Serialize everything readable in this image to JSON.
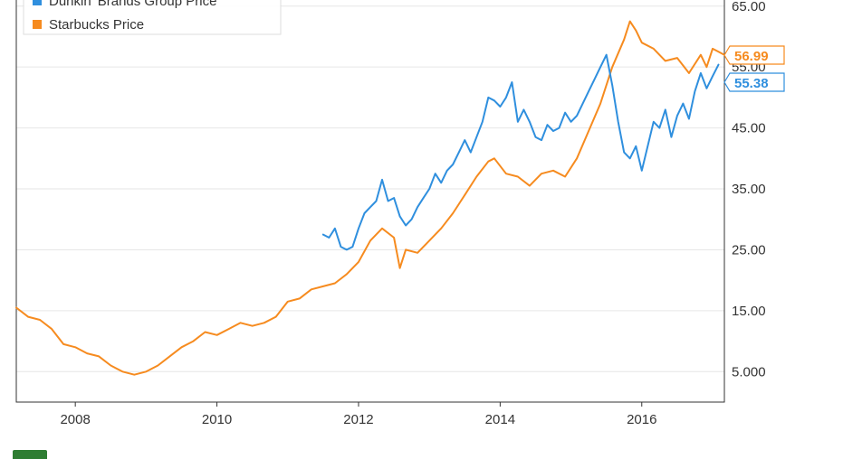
{
  "chart_data": {
    "type": "line",
    "title": "",
    "xlabel": "",
    "ylabel": "",
    "xlim": [
      "2007-03",
      "2017-03"
    ],
    "ylim": [
      0,
      66
    ],
    "y_ticks": [
      "5.000",
      "15.00",
      "25.00",
      "35.00",
      "45.00",
      "55.00",
      "65.00"
    ],
    "y_tick_values": [
      5,
      15,
      25,
      35,
      45,
      55,
      65
    ],
    "x_ticks": [
      "2008",
      "2010",
      "2012",
      "2014",
      "2016"
    ],
    "x_tick_values": [
      "2008-01",
      "2010-01",
      "2012-01",
      "2014-01",
      "2016-01"
    ],
    "y_axis_side": "right",
    "grid": "horizontal",
    "legend_position": "top-left",
    "series": [
      {
        "name": "Dunkin' Brands Group Price",
        "color": "#2f8fde",
        "end_label": "55.38",
        "x": [
          "2011-07",
          "2011-08",
          "2011-09",
          "2011-10",
          "2011-11",
          "2011-12",
          "2012-01",
          "2012-02",
          "2012-03",
          "2012-04",
          "2012-05",
          "2012-06",
          "2012-07",
          "2012-08",
          "2012-09",
          "2012-10",
          "2012-11",
          "2012-12",
          "2013-01",
          "2013-02",
          "2013-03",
          "2013-04",
          "2013-05",
          "2013-06",
          "2013-07",
          "2013-08",
          "2013-09",
          "2013-10",
          "2013-11",
          "2013-12",
          "2014-01",
          "2014-02",
          "2014-03",
          "2014-04",
          "2014-05",
          "2014-06",
          "2014-07",
          "2014-08",
          "2014-09",
          "2014-10",
          "2014-11",
          "2014-12",
          "2015-01",
          "2015-02",
          "2015-03",
          "2015-04",
          "2015-05",
          "2015-06",
          "2015-07",
          "2015-08",
          "2015-09",
          "2015-10",
          "2015-11",
          "2015-12",
          "2016-01",
          "2016-02",
          "2016-03",
          "2016-04",
          "2016-05",
          "2016-06",
          "2016-07",
          "2016-08",
          "2016-09",
          "2016-10",
          "2016-11",
          "2016-12",
          "2017-01",
          "2017-02"
        ],
        "values": [
          27.5,
          27.0,
          28.5,
          25.5,
          25.0,
          25.5,
          28.5,
          31.0,
          32.0,
          33.0,
          36.5,
          33.0,
          33.5,
          30.5,
          29.0,
          30.0,
          32.0,
          33.5,
          35.0,
          37.5,
          36.0,
          38.0,
          39.0,
          41.0,
          43.0,
          41.0,
          43.5,
          46.0,
          50.0,
          49.5,
          48.5,
          50.0,
          52.5,
          46.0,
          48.0,
          46.0,
          43.5,
          43.0,
          45.5,
          44.5,
          45.0,
          47.5,
          46.0,
          47.0,
          49.0,
          51.0,
          53.0,
          55.0,
          57.0,
          52.0,
          46.0,
          41.0,
          40.0,
          42.0,
          38.0,
          42.0,
          46.0,
          45.0,
          48.0,
          43.5,
          47.0,
          49.0,
          46.5,
          51.0,
          54.0,
          51.5,
          53.5,
          55.38
        ]
      },
      {
        "name": "Starbucks Price",
        "color": "#f68b1f",
        "end_label": "56.99",
        "x": [
          "2007-03",
          "2007-05",
          "2007-07",
          "2007-09",
          "2007-11",
          "2008-01",
          "2008-03",
          "2008-05",
          "2008-07",
          "2008-09",
          "2008-11",
          "2009-01",
          "2009-03",
          "2009-05",
          "2009-07",
          "2009-09",
          "2009-11",
          "2010-01",
          "2010-03",
          "2010-05",
          "2010-07",
          "2010-09",
          "2010-11",
          "2011-01",
          "2011-03",
          "2011-05",
          "2011-07",
          "2011-09",
          "2011-11",
          "2012-01",
          "2012-03",
          "2012-05",
          "2012-07",
          "2012-08",
          "2012-09",
          "2012-11",
          "2013-01",
          "2013-03",
          "2013-05",
          "2013-07",
          "2013-09",
          "2013-11",
          "2013-12",
          "2014-02",
          "2014-04",
          "2014-06",
          "2014-08",
          "2014-10",
          "2014-12",
          "2015-02",
          "2015-04",
          "2015-06",
          "2015-08",
          "2015-10",
          "2015-11",
          "2015-12",
          "2016-01",
          "2016-03",
          "2016-05",
          "2016-07",
          "2016-09",
          "2016-11",
          "2016-12",
          "2017-01",
          "2017-02",
          "2017-03"
        ],
        "values": [
          15.5,
          14.0,
          13.5,
          12.0,
          9.5,
          9.0,
          8.0,
          7.5,
          6.0,
          5.0,
          4.5,
          5.0,
          6.0,
          7.5,
          9.0,
          10.0,
          11.5,
          11.0,
          12.0,
          13.0,
          12.5,
          13.0,
          14.0,
          16.5,
          17.0,
          18.5,
          19.0,
          19.5,
          21.0,
          23.0,
          26.5,
          28.5,
          27.0,
          22.0,
          25.0,
          24.5,
          26.5,
          28.5,
          31.0,
          34.0,
          37.0,
          39.5,
          40.0,
          37.5,
          37.0,
          35.5,
          37.5,
          38.0,
          37.0,
          40.0,
          44.5,
          49.0,
          55.0,
          59.5,
          62.5,
          61.0,
          59.0,
          58.0,
          56.0,
          56.5,
          54.0,
          57.0,
          55.0,
          58.0,
          57.5,
          56.99
        ]
      }
    ]
  }
}
